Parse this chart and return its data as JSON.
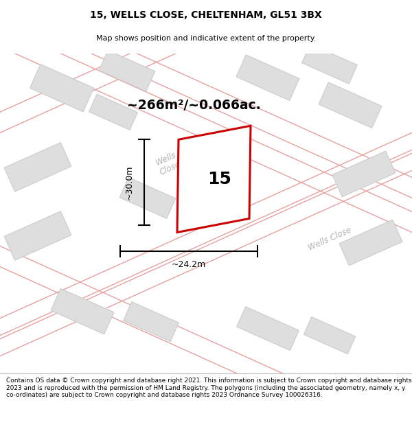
{
  "title": "15, WELLS CLOSE, CHELTENHAM, GL51 3BX",
  "subtitle": "Map shows position and indicative extent of the property.",
  "footer": "Contains OS data © Crown copyright and database right 2021. This information is subject to Crown copyright and database rights 2023 and is reproduced with the permission of HM Land Registry. The polygons (including the associated geometry, namely x, y co-ordinates) are subject to Crown copyright and database rights 2023 Ordnance Survey 100026316.",
  "area_text": "~266m²/~0.066ac.",
  "width_label": "~24.2m",
  "height_label": "~30.0m",
  "plot_number": "15",
  "map_bg": "#f2f2f2",
  "road_line_color": "#e8a0a0",
  "building_fill": "#dedede",
  "building_edge": "#cccccc",
  "plot_fill": "#ffffff",
  "plot_edge": "#cc0000",
  "street_label_color": "#b0b0b0",
  "dim_line_color": "#000000",
  "title_fontsize": 10,
  "subtitle_fontsize": 8,
  "footer_fontsize": 6.5
}
